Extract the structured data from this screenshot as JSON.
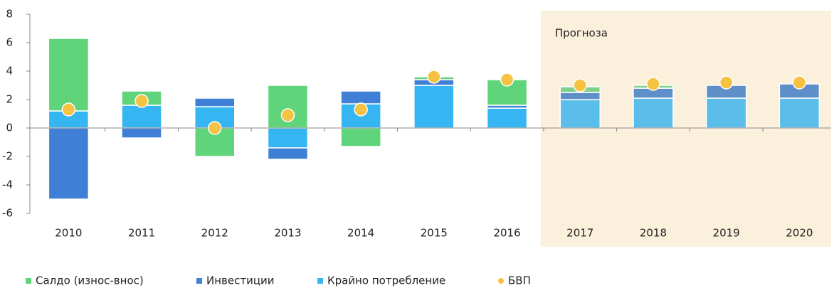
{
  "chart_data": {
    "type": "stacked_bar",
    "categories": [
      "2010",
      "2011",
      "2012",
      "2013",
      "2014",
      "2015",
      "2016",
      "2017",
      "2018",
      "2019",
      "2020"
    ],
    "forecast": {
      "label": "Прогноза",
      "from": "2017",
      "color": "#fbf0dc"
    },
    "series": [
      {
        "name": "Салдо (износ-внос)",
        "color": "#5fd47a",
        "forecast_color": "#7fcf8a",
        "values": [
          5.1,
          1.0,
          -2.0,
          3.0,
          -1.3,
          0.2,
          1.8,
          0.4,
          0.2,
          0,
          0
        ]
      },
      {
        "name": "Инвестиции",
        "color": "#3f7fd6",
        "forecast_color": "#5f8fc9",
        "values": [
          -5.0,
          -0.7,
          0.6,
          -0.8,
          0.9,
          0.4,
          0.2,
          0.5,
          0.7,
          0.9,
          1.0
        ]
      },
      {
        "name": "Крайно потребление",
        "color": "#35b5f2",
        "forecast_color": "#5bbde9",
        "values": [
          1.2,
          1.6,
          1.5,
          -1.4,
          1.7,
          3.0,
          1.4,
          2.0,
          2.1,
          2.1,
          2.1
        ]
      },
      {
        "name": "БВП",
        "type": "scatter",
        "color": "#f5c242",
        "values": [
          1.3,
          1.9,
          0.0,
          0.9,
          1.3,
          3.6,
          3.4,
          3.0,
          3.1,
          3.2,
          3.2
        ]
      }
    ],
    "ylim": [
      -6,
      8
    ],
    "yticks": [
      -6,
      -4,
      -2,
      0,
      2,
      4,
      6,
      8
    ]
  }
}
